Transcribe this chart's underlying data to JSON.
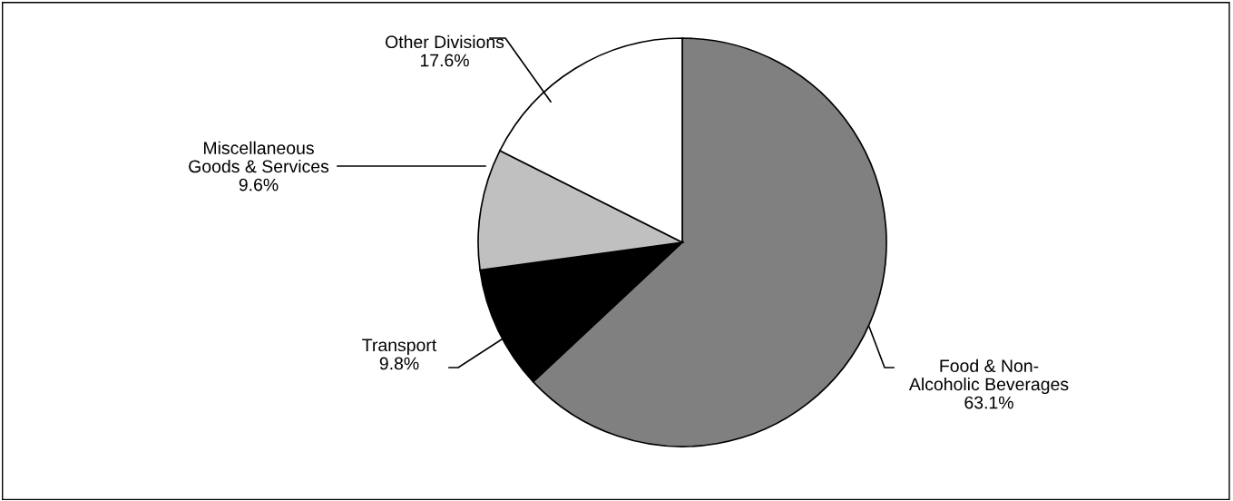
{
  "chart_data": {
    "type": "pie",
    "categories": [
      "Food & Non-\nAlcoholic Beverages",
      "Transport",
      "Miscellaneous\nGoods & Services",
      "Other Divisions"
    ],
    "values": [
      63.1,
      9.8,
      9.6,
      17.6
    ],
    "value_labels": [
      "63.1%",
      "9.8%",
      "9.6%",
      "17.6%"
    ],
    "colors": [
      "#808080",
      "#000000",
      "#c0c0c0",
      "#ffffff"
    ],
    "legend": false
  }
}
